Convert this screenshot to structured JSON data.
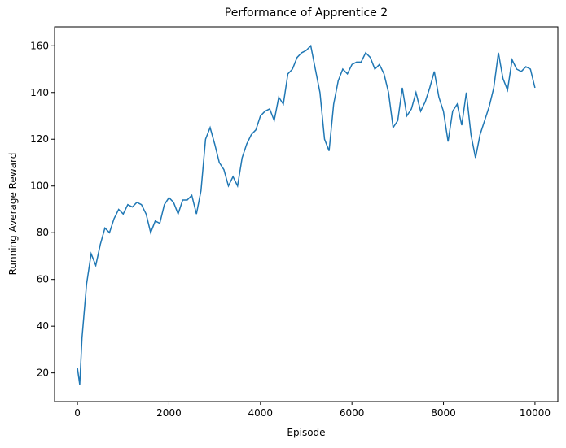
{
  "chart_data": {
    "type": "line",
    "title": "Performance of Apprentice 2",
    "x_label": "Episode",
    "y_label": "Running Average Reward",
    "x": [
      0,
      50,
      100,
      200,
      300,
      400,
      500,
      600,
      700,
      800,
      900,
      1000,
      1100,
      1200,
      1300,
      1400,
      1500,
      1600,
      1700,
      1800,
      1900,
      2000,
      2100,
      2200,
      2300,
      2400,
      2500,
      2600,
      2700,
      2800,
      2900,
      3000,
      3100,
      3200,
      3300,
      3400,
      3500,
      3600,
      3700,
      3800,
      3900,
      4000,
      4100,
      4200,
      4300,
      4400,
      4500,
      4600,
      4700,
      4800,
      4900,
      5000,
      5100,
      5200,
      5300,
      5400,
      5500,
      5600,
      5700,
      5800,
      5900,
      6000,
      6100,
      6200,
      6300,
      6400,
      6500,
      6600,
      6700,
      6800,
      6900,
      7000,
      7100,
      7200,
      7300,
      7400,
      7500,
      7600,
      7700,
      7800,
      7900,
      8000,
      8100,
      8200,
      8300,
      8400,
      8500,
      8600,
      8700,
      8800,
      8900,
      9000,
      9100,
      9200,
      9300,
      9400,
      9500,
      9600,
      9700,
      9800,
      9900,
      9999
    ],
    "series": [
      {
        "name": "Running Average Reward",
        "color": "#1f77b4",
        "values": [
          22,
          15,
          35,
          58,
          71,
          66,
          75,
          82,
          80,
          86,
          90,
          88,
          92,
          91,
          93,
          92,
          88,
          80,
          85,
          84,
          92,
          95,
          93,
          88,
          94,
          94,
          96,
          88,
          98,
          120,
          125,
          118,
          110,
          107,
          100,
          104,
          100,
          112,
          118,
          122,
          124,
          130,
          132,
          133,
          128,
          138,
          135,
          148,
          150,
          155,
          157,
          158,
          160,
          150,
          140,
          120,
          115,
          135,
          145,
          150,
          148,
          152,
          153,
          153,
          157,
          155,
          150,
          152,
          148,
          140,
          125,
          128,
          142,
          130,
          133,
          140,
          132,
          136,
          142,
          149,
          138,
          132,
          119,
          132,
          135,
          126,
          140,
          122,
          112,
          122,
          128,
          134,
          142,
          157,
          146,
          141,
          154,
          150,
          149,
          151,
          150,
          142
        ]
      }
    ],
    "xlim": [
      -500,
      10500
    ],
    "xticks": [
      0,
      2000,
      4000,
      6000,
      8000,
      10000
    ],
    "ylim": [
      7.7,
      168.1
    ],
    "yticks": [
      20,
      40,
      60,
      80,
      100,
      120,
      140,
      160
    ]
  }
}
